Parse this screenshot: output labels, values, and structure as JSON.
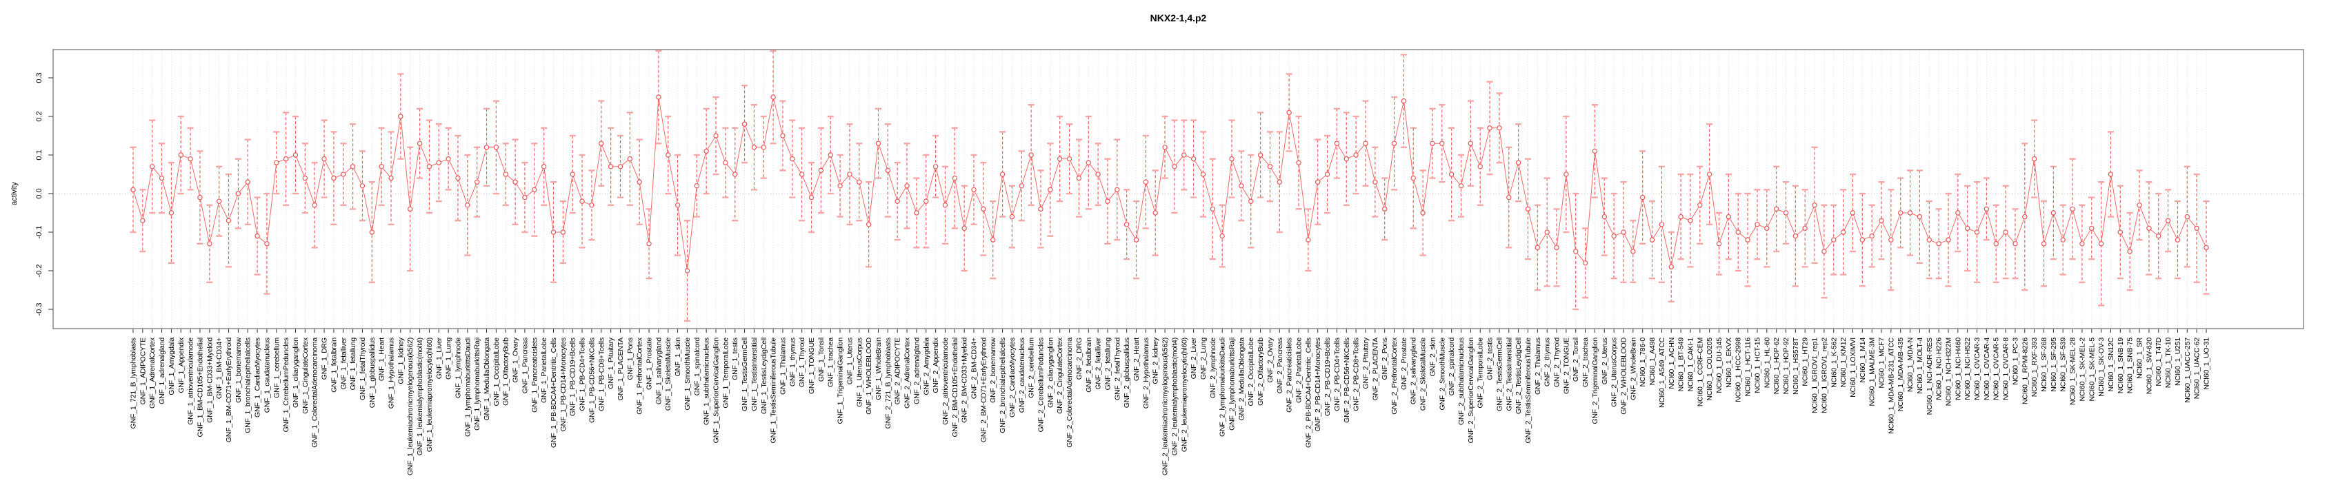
{
  "figure": {
    "title": "NKX2-1,4.p2"
  },
  "colors": {
    "series": "#f06a6a",
    "whisker": "#f15f5f",
    "cap": "#f7a6a6",
    "marker_stroke": "#e95555",
    "grid": "#d8d8d8",
    "zero_line": "#bfbfbf",
    "box_border": "#7f7f7f",
    "text": "#000000"
  },
  "chart_data": {
    "type": "scatter",
    "subtype": "point-estimates-with-error-bars",
    "title": "NKX2-1,4.p2",
    "xlabel": "",
    "ylabel": "activity",
    "ylim": [
      -0.35,
      0.38
    ],
    "ytick_values": [
      0.3,
      0.2,
      0.1,
      0.0,
      -0.1,
      -0.2,
      -0.3
    ],
    "ytick_labels": [
      "0.3",
      "0.2",
      "0.1",
      "0.0",
      "-0.1",
      "-0.2",
      "-0.3"
    ],
    "grid": "vertical dotted gridline per category, dotted horizontal line at 0",
    "legend_position": "none",
    "marker": "open-circle",
    "line_style": "connected with dashed error whiskers and capped ends",
    "categories": [
      "GNF_1_721_B_lymphoblasts",
      "GNF_1_ADIPOCYTE",
      "GNF_1_AdrenalCortex",
      "GNF_1_adrenalgland",
      "GNF_1_Amygdala",
      "GNF_1_Appendix",
      "GNF_1_atrioventricularnode",
      "GNF_1_BM-CD105+Endothelial",
      "GNF_1_BM-CD33+Myeloid",
      "GNF_1_BM-CD34+",
      "GNF_1_BM-CD71+EarlyErythroid",
      "GNF_1_bonemarrow",
      "GNF_1_bronchialepithelialcells",
      "GNF_1_CardiacMyocytes",
      "GNF_1_caudatenucleus",
      "GNF_1_cerebellum",
      "GNF_1_CerebellumPeduncles",
      "GNF_1_ciliaryganglion",
      "GNF_1_CingulateCortex",
      "GNF_1_ColorectalAdenocarcinoma",
      "GNF_1_DRG",
      "GNF_1_fetalbrain",
      "GNF_1_fetalliver",
      "GNF_1_fetallung",
      "GNF_1_fetalThyroid",
      "GNF_1_globuspallidus",
      "GNF_1_Heart",
      "GNF_1_Hypothalamus",
      "GNF_1_kidney",
      "GNF_1_leukemiachronicmyelogenous(k562)",
      "GNF_1_leukemialymphoblastic(molt4)",
      "GNF_1_leukemiapromyelocytic(hl60)",
      "GNF_1_Liver",
      "GNF_1_Lung",
      "GNF_1_lymphnode",
      "GNF_1_lymphomaburkittsDaudi",
      "GNF_1_lymphomaburkittsRaji",
      "GNF_1_MedullaOblongata",
      "GNF_1_OccipitalLobe",
      "GNF_1_OlfactoryBulb",
      "GNF_1_Ovary",
      "GNF_1_Pancreas",
      "GNF_1_Pancreaticislets",
      "GNF_1_ParietalLobe",
      "GNF_1_PB-BDCA4+Dentritic_Cells",
      "GNF_1_PB-CD14+Monocytes",
      "GNF_1_PB-CD19+Bcells",
      "GNF_1_PB-CD4+Tcells",
      "GNF_1_PB-CD56+NKCells",
      "GNF_1_PB-CD8+Tcells",
      "GNF_1_Pituitary",
      "GNF_1_PLACENTA",
      "GNF_1_Pons",
      "GNF_1_PrefrontalCortex",
      "GNF_1_Prostate",
      "GNF_1_salivarygland",
      "GNF_1_SkeletalMuscle",
      "GNF_1_skin",
      "GNF_1_SmoothMuscle",
      "GNF_1_spinalcord",
      "GNF_1_subthalamicnucleus",
      "GNF_1_SuperiorCervicalGanglion",
      "GNF_1_TemporalLobe",
      "GNF_1_testis",
      "GNF_1_TestisGermCell",
      "GNF_1_TestisInterstitial",
      "GNF_1_TestisLeydigCell",
      "GNF_1_TestisSeminiferousTubule",
      "GNF_1_Thalamus",
      "GNF_1_thymus",
      "GNF_1_Thyroid",
      "GNF_1_TONGUE",
      "GNF_1_Tonsil",
      "GNF_1_trachea",
      "GNF_1_TrigeminalGanglion",
      "GNF_1_Uterus",
      "GNF_1_UterusCorpus",
      "GNF_1_WHOLEBLOOD",
      "GNF_1_WholeBrain",
      "GNF_2_721_B_lymphoblasts",
      "GNF_2_ADIPOCYTE",
      "GNF_2_AdrenalCortex",
      "GNF_2_adrenalgland",
      "GNF_2_Amygdala",
      "GNF_2_Appendix",
      "GNF_2_atrioventricularnode",
      "GNF_2_BM-CD105+Endothelial",
      "GNF_2_BM-CD33+Myeloid",
      "GNF_2_BM-CD34+",
      "GNF_2_BM-CD71+EarlyErythroid",
      "GNF_2_bonemarrow",
      "GNF_2_bronchialepithelialcells",
      "GNF_2_CardiacMyocytes",
      "GNF_2_caudatenucleus",
      "GNF_2_cerebellum",
      "GNF_2_CerebellumPeduncles",
      "GNF_2_ciliaryganglion",
      "GNF_2_CingulateCortex",
      "GNF_2_ColorectalAdenocarcinoma",
      "GNF_2_DRG",
      "GNF_2_fetalbrain",
      "GNF_2_fetalliver",
      "GNF_2_fetallung",
      "GNF_2_fetalThyroid",
      "GNF_2_globuspallidus",
      "GNF_2_Heart",
      "GNF_2_Hypothalamus",
      "GNF_2_kidney",
      "GNF_2_leukemiachronicmyelogenous(k562)",
      "GNF_2_leukemialymphoblastic(molt4)",
      "GNF_2_leukemiapromyelocytic(hl60)",
      "GNF_2_Liver",
      "GNF_2_Lung",
      "GNF_2_lymphnode",
      "GNF_2_lymphomaburkittsDaudi",
      "GNF_2_lymphomaburkittsRaji",
      "GNF_2_MedullaOblongata",
      "GNF_2_OccipitalLobe",
      "GNF_2_OlfactoryBulb",
      "GNF_2_Ovary",
      "GNF_2_Pancreas",
      "GNF_2_Pancreaticislets",
      "GNF_2_ParietalLobe",
      "GNF_2_PB-BDCA4+Dentritic_Cells",
      "GNF_2_PB-CD14+Monocytes",
      "GNF_2_PB-CD19+Bcells",
      "GNF_2_PB-CD4+Tcells",
      "GNF_2_PB-CD56+NKCells",
      "GNF_2_PB-CD8+Tcells",
      "GNF_2_Pituitary",
      "GNF_2_PLACENTA",
      "GNF_2_Pons",
      "GNF_2_PrefrontalCortex",
      "GNF_2_Prostate",
      "GNF_2_salivarygland",
      "GNF_2_SkeletalMuscle",
      "GNF_2_skin",
      "GNF_2_SmoothMuscle",
      "GNF_2_spinalcord",
      "GNF_2_subthalamicnucleus",
      "GNF_2_SuperiorCervicalGanglion",
      "GNF_2_TemporalLobe",
      "GNF_2_testis",
      "GNF_2_TestisGermCell",
      "GNF_2_TestisInterstitial",
      "GNF_2_TestisLeydigCell",
      "GNF_2_TestisSeminiferousTubule",
      "GNF_2_Thalamus",
      "GNF_2_thymus",
      "GNF_2_Thyroid",
      "GNF_2_TONGUE",
      "GNF_2_Tonsil",
      "GNF_2_trachea",
      "GNF_2_TrigeminalGanglion",
      "GNF_2_Uterus",
      "GNF_2_UterusCorpus",
      "GNF_2_WHOLEBLOOD",
      "GNF_2_WholeBrain",
      "NCI60_1_786-0",
      "NCI60_1_A498",
      "NCI60_1_A549_ATCC",
      "NCI60_1_ACHN",
      "NCI60_1_BT-549",
      "NCI60_1_CAKI-1",
      "NCI60_1_CCRF-CEM",
      "NCI60_1_COLO205",
      "NCI60_1_DU-145",
      "NCI60_1_EKVX",
      "NCI60_1_HCC-2998",
      "NCI60_1_HCT-116",
      "NCI60_1_HCT-15",
      "NCI60_1_HL-60",
      "NCI60_1_HOP-62",
      "NCI60_1_HOP-92",
      "NCI60_1_HS578T",
      "NCI60_1_HT29",
      "NCI60_1_IGROV1_rep1",
      "NCI60_1_IGROV1_rep2",
      "NCI60_1_K-562",
      "NCI60_1_KM12",
      "NCI60_1_LOXIMVI",
      "NCI60_1_M14",
      "NCI60_1_MALME-3M",
      "NCI60_1_MCF7",
      "NCI60_1_MDA-MB-231_ATCC",
      "NCI60_1_MDA-MB-435",
      "NCI60_1_MDA-N",
      "NCI60_1_MOLT-4",
      "NCI60_1_NCI-ADR-RES",
      "NCI60_1_NCI-H226",
      "NCI60_1_NCI-H322M",
      "NCI60_1_NCI-H460",
      "NCI60_1_NCI-H522",
      "NCI60_1_OVCAR-3",
      "NCI60_1_OVCAR-4",
      "NCI60_1_OVCAR-5",
      "NCI60_1_OVCAR-8",
      "NCI60_1_PC-3",
      "NCI60_1_RPMI-8226",
      "NCI60_1_RXF-393",
      "NCI60_1_SF-268",
      "NCI60_1_SF-295",
      "NCI60_1_SF-539",
      "NCI60_1_SK-MEL-28",
      "NCI60_1_SK-MEL-2",
      "NCI60_1_SK-MEL-5",
      "NCI60_1_SK-OV-3",
      "NCI60_1_SN12C",
      "NCI60_1_SNB-19",
      "NCI60_1_SNB-75",
      "NCI60_1_SR",
      "NCI60_1_SW-620",
      "NCI60_1_T47D",
      "NCI60_1_TK-10",
      "NCI60_1_U251",
      "NCI60_1_UACC-257",
      "NCI60_1_UACC-62",
      "NCI60_1_UO-31"
    ],
    "values": [
      0.01,
      -0.07,
      0.07,
      0.04,
      -0.05,
      0.1,
      0.09,
      -0.01,
      -0.13,
      -0.02,
      -0.07,
      0.0,
      0.03,
      -0.11,
      -0.13,
      0.08,
      0.09,
      0.1,
      0.04,
      -0.03,
      0.09,
      0.04,
      0.05,
      0.07,
      0.02,
      -0.1,
      0.07,
      0.04,
      0.2,
      -0.04,
      0.13,
      0.07,
      0.08,
      0.09,
      0.04,
      -0.03,
      0.03,
      0.12,
      0.12,
      0.05,
      0.03,
      -0.01,
      0.01,
      0.07,
      -0.1,
      -0.1,
      0.05,
      -0.02,
      -0.03,
      0.13,
      0.07,
      0.07,
      0.09,
      0.03,
      -0.13,
      0.25,
      0.1,
      -0.03,
      -0.2,
      0.02,
      0.11,
      0.15,
      0.08,
      0.05,
      0.18,
      0.12,
      0.12,
      0.25,
      0.15,
      0.09,
      0.05,
      -0.01,
      0.06,
      0.1,
      0.02,
      0.05,
      0.03,
      -0.08,
      0.13,
      0.06,
      -0.02,
      0.02,
      -0.05,
      -0.02,
      0.07,
      -0.03,
      0.04,
      -0.09,
      0.01,
      -0.04,
      -0.12,
      0.05,
      -0.06,
      0.02,
      0.1,
      -0.04,
      0.01,
      0.09,
      0.09,
      0.04,
      0.08,
      0.05,
      -0.02,
      0.01,
      -0.08,
      -0.12,
      0.03,
      -0.05,
      0.12,
      0.07,
      0.1,
      0.09,
      0.05,
      -0.04,
      -0.11,
      0.09,
      0.02,
      -0.02,
      0.1,
      0.07,
      0.03,
      0.21,
      0.08,
      -0.12,
      0.03,
      0.05,
      0.13,
      0.09,
      0.1,
      0.13,
      0.03,
      -0.04,
      0.13,
      0.24,
      0.04,
      -0.05,
      0.13,
      0.13,
      0.05,
      0.02,
      0.13,
      0.07,
      0.17,
      0.17,
      -0.01,
      0.08,
      -0.04,
      -0.14,
      -0.1,
      -0.14,
      0.05,
      -0.15,
      -0.18,
      0.11,
      -0.06,
      -0.11,
      -0.1,
      -0.15,
      -0.01,
      -0.12,
      -0.08,
      -0.19,
      -0.06,
      -0.07,
      -0.03,
      0.05,
      -0.13,
      -0.06,
      -0.1,
      -0.12,
      -0.08,
      -0.09,
      -0.04,
      -0.05,
      -0.11,
      -0.09,
      -0.03,
      -0.15,
      -0.12,
      -0.1,
      -0.05,
      -0.12,
      -0.11,
      -0.07,
      -0.12,
      -0.05,
      -0.05,
      -0.06,
      -0.12,
      -0.13,
      -0.12,
      -0.05,
      -0.09,
      -0.1,
      -0.04,
      -0.13,
      -0.1,
      -0.13,
      -0.06,
      0.09,
      -0.13,
      -0.05,
      -0.12,
      -0.04,
      -0.13,
      -0.09,
      -0.13,
      0.05,
      -0.1,
      -0.15,
      -0.03,
      -0.09,
      -0.11,
      -0.07,
      -0.12,
      -0.06,
      -0.09,
      -0.14
    ],
    "errors": [
      0.11,
      0.08,
      0.12,
      0.09,
      0.13,
      0.1,
      0.08,
      0.12,
      0.1,
      0.09,
      0.12,
      0.09,
      0.11,
      0.1,
      0.13,
      0.08,
      0.12,
      0.1,
      0.09,
      0.11,
      0.1,
      0.12,
      0.08,
      0.11,
      0.09,
      0.13,
      0.1,
      0.12,
      0.11,
      0.16,
      0.09,
      0.12,
      0.1,
      0.08,
      0.11,
      0.13,
      0.09,
      0.1,
      0.12,
      0.08,
      0.11,
      0.09,
      0.12,
      0.1,
      0.13,
      0.08,
      0.1,
      0.12,
      0.09,
      0.11,
      0.1,
      0.08,
      0.12,
      0.11,
      0.09,
      0.12,
      0.1,
      0.13,
      0.13,
      0.08,
      0.11,
      0.1,
      0.09,
      0.12,
      0.1,
      0.11,
      0.08,
      0.12,
      0.09,
      0.1,
      0.12,
      0.09,
      0.11,
      0.1,
      0.08,
      0.13,
      0.1,
      0.11,
      0.09,
      0.12,
      0.1,
      0.11,
      0.09,
      0.12,
      0.08,
      0.1,
      0.13,
      0.11,
      0.09,
      0.12,
      0.1,
      0.11,
      0.08,
      0.09,
      0.13,
      0.1,
      0.12,
      0.11,
      0.09,
      0.1,
      0.12,
      0.08,
      0.11,
      0.13,
      0.09,
      0.1,
      0.12,
      0.11,
      0.08,
      0.12,
      0.09,
      0.1,
      0.11,
      0.13,
      0.08,
      0.1,
      0.09,
      0.12,
      0.11,
      0.09,
      0.13,
      0.1,
      0.12,
      0.08,
      0.11,
      0.1,
      0.09,
      0.12,
      0.1,
      0.11,
      0.09,
      0.08,
      0.12,
      0.12,
      0.13,
      0.11,
      0.09,
      0.1,
      0.12,
      0.08,
      0.11,
      0.1,
      0.12,
      0.09,
      0.13,
      0.1,
      0.13,
      0.11,
      0.14,
      0.1,
      0.15,
      0.15,
      0.09,
      0.12,
      0.1,
      0.11,
      0.13,
      0.08,
      0.12,
      0.1,
      0.15,
      0.09,
      0.11,
      0.12,
      0.1,
      0.13,
      0.08,
      0.11,
      0.1,
      0.12,
      0.09,
      0.1,
      0.11,
      0.08,
      0.13,
      0.1,
      0.15,
      0.12,
      0.09,
      0.11,
      0.1,
      0.12,
      0.08,
      0.1,
      0.13,
      0.09,
      0.11,
      0.12,
      0.1,
      0.09,
      0.12,
      0.1,
      0.11,
      0.13,
      0.08,
      0.1,
      0.12,
      0.09,
      0.19,
      0.1,
      0.11,
      0.12,
      0.09,
      0.13,
      0.1,
      0.08,
      0.16,
      0.11,
      0.12,
      0.1,
      0.09,
      0.12,
      0.11,
      0.08,
      0.1,
      0.13,
      0.14,
      0.12
    ]
  }
}
